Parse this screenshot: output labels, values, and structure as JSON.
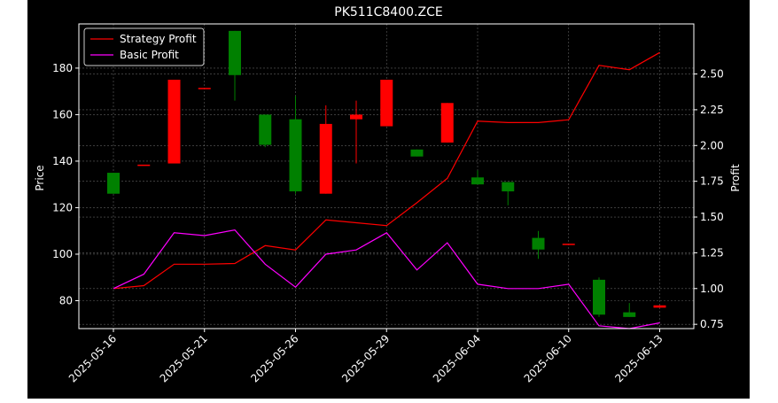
{
  "chart_data": {
    "type": "candlestick",
    "title": "PK511C8400.ZCE",
    "ylabel": "Price",
    "y2label": "Profit",
    "ylim": [
      68,
      199
    ],
    "y2lim": [
      0.72,
      2.85
    ],
    "yticks": [
      80,
      100,
      120,
      140,
      160,
      180
    ],
    "y2ticks": [
      "0.75",
      "1.00",
      "1.25",
      "1.50",
      "1.75",
      "2.00",
      "2.25",
      "2.50"
    ],
    "xtick_labels": [
      "2025-05-16",
      "2025-05-21",
      "2025-05-26",
      "2025-05-29",
      "2025-06-04",
      "2025-06-10",
      "2025-06-13"
    ],
    "xtick_index": [
      0,
      3,
      6,
      9,
      12,
      15,
      18
    ],
    "grid": true,
    "legend_position": "top-left",
    "colors": {
      "up": "#ff0000",
      "down": "#008000",
      "strategy": "#ff0000",
      "basic": "#ff00ff"
    },
    "candles": [
      {
        "open": 135,
        "high": 135,
        "low": 126,
        "close": 126
      },
      {
        "open": 138,
        "high": 138,
        "low": 138,
        "close": 138.5
      },
      {
        "open": 139,
        "high": 175,
        "low": 139,
        "close": 175
      },
      {
        "open": 171,
        "high": 171,
        "low": 171,
        "close": 171.5
      },
      {
        "open": 196,
        "high": 196,
        "low": 166,
        "close": 177
      },
      {
        "open": 160,
        "high": 160,
        "low": 146,
        "close": 147
      },
      {
        "open": 158,
        "high": 168,
        "low": 126,
        "close": 127
      },
      {
        "open": 126,
        "high": 164,
        "low": 126,
        "close": 156
      },
      {
        "open": 158,
        "high": 166,
        "low": 139,
        "close": 160
      },
      {
        "open": 155,
        "high": 175,
        "low": 155,
        "close": 175
      },
      {
        "open": 145,
        "high": 145,
        "low": 142,
        "close": 142
      },
      {
        "open": 148,
        "high": 165,
        "low": 148,
        "close": 165
      },
      {
        "open": 133,
        "high": 136,
        "low": 130,
        "close": 130
      },
      {
        "open": 131,
        "high": 131,
        "low": 121,
        "close": 127
      },
      {
        "open": 107,
        "high": 110,
        "low": 98,
        "close": 102
      },
      {
        "open": 104,
        "high": 104,
        "low": 104,
        "close": 104.5
      },
      {
        "open": 89,
        "high": 90,
        "low": 73,
        "close": 74
      },
      {
        "open": 75,
        "high": 79,
        "low": 73,
        "close": 73
      },
      {
        "open": 77,
        "high": 78,
        "low": 77,
        "close": 78
      }
    ],
    "series": [
      {
        "name": "Strategy Profit",
        "values": [
          1.0,
          1.02,
          1.17,
          1.17,
          1.175,
          1.3,
          1.27,
          1.48,
          1.46,
          1.44,
          1.6,
          1.77,
          2.17,
          2.16,
          2.16,
          2.18,
          2.56,
          2.53,
          2.65
        ]
      },
      {
        "name": "Basic Profit",
        "values": [
          1.0,
          1.1,
          1.39,
          1.37,
          1.41,
          1.17,
          1.01,
          1.24,
          1.27,
          1.39,
          1.13,
          1.32,
          1.03,
          1.0,
          1.0,
          1.03,
          0.74,
          0.72,
          0.76
        ]
      }
    ]
  }
}
